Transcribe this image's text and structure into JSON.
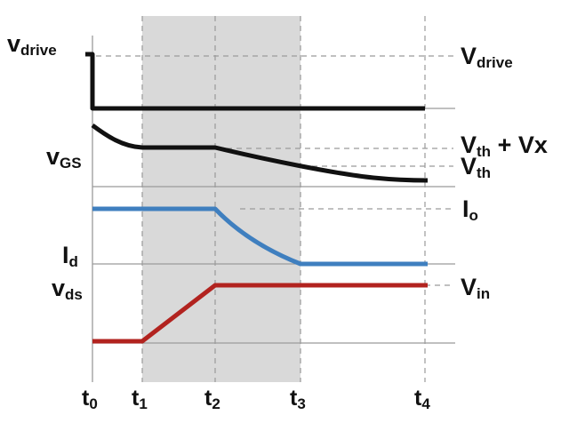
{
  "colors": {
    "shade": "#d9d9d9",
    "drive": "#111111",
    "current": "#3f7fbf",
    "voltage": "#b2231f"
  },
  "labels": {
    "v_drive_left": {
      "main": "v",
      "sub": "drive"
    },
    "v_gs": {
      "main": "v",
      "sub": "GS"
    },
    "i_d": {
      "main": "I",
      "sub": "d"
    },
    "v_ds": {
      "main": "v",
      "sub": "ds"
    },
    "v_drive_right": {
      "main": "V",
      "sub": "drive"
    },
    "vth_vx": {
      "main": "V",
      "sub": "th",
      "suffix": " + Vx"
    },
    "vth": {
      "main": "V",
      "sub": "th"
    },
    "io": {
      "main": "I",
      "sub": "o"
    },
    "vin": {
      "main": "V",
      "sub": "in"
    }
  },
  "time_labels": [
    {
      "main": "t",
      "sub": "0"
    },
    {
      "main": "t",
      "sub": "1"
    },
    {
      "main": "t",
      "sub": "2"
    },
    {
      "main": "t",
      "sub": "3"
    },
    {
      "main": "t",
      "sub": "4"
    }
  ]
}
